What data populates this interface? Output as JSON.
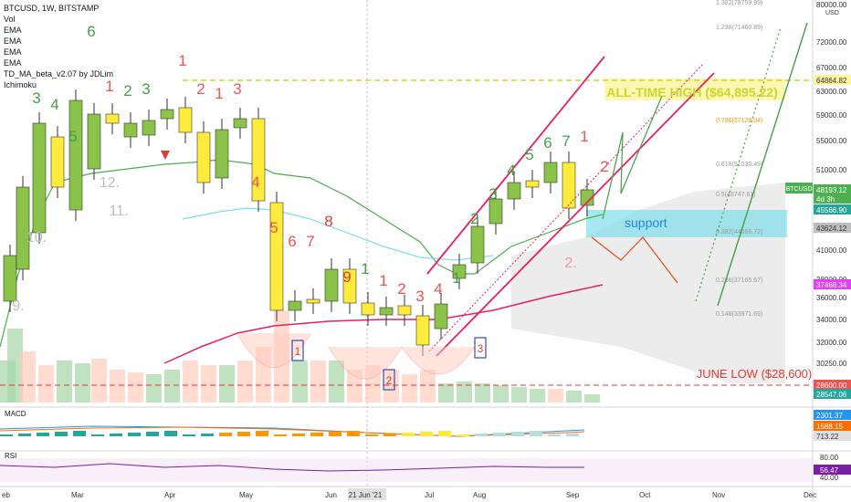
{
  "legend": {
    "symbol": "BTCUSD, 1W, BITSTAMP",
    "items": [
      "Vol",
      "EMA",
      "EMA",
      "EMA",
      "EMA",
      "TD_MA_beta_v2.07 by JDLim",
      "Ichimoku"
    ]
  },
  "price_axis": {
    "unit": "USD",
    "ticks": [
      "80000.00",
      "72000.00",
      "67000.00",
      "63000.00",
      "59000.00",
      "55000.00",
      "51000.00",
      "41000.00",
      "38000.00",
      "36000.00",
      "34000.00",
      "32000.00",
      "30250.00"
    ],
    "tags": [
      {
        "text": "64864.82",
        "color": "#fff59d",
        "textColor": "#333333"
      },
      {
        "text": "48193.12",
        "color": "#4caf50",
        "textColor": "#ffffff"
      },
      {
        "text": "4d 3h",
        "color": "#4caf50",
        "textColor": "#ffffff"
      },
      {
        "text": "45566.90",
        "color": "#26a69a",
        "textColor": "#ffffff"
      },
      {
        "text": "43624.12",
        "color": "#bdbdbd",
        "textColor": "#333333"
      },
      {
        "text": "37468.34",
        "color": "#e040fb",
        "textColor": "#ffffff"
      },
      {
        "text": "28600.00",
        "color": "#ef5350",
        "textColor": "#ffffff"
      },
      {
        "text": "28547.06",
        "color": "#26a69a",
        "textColor": "#ffffff"
      }
    ]
  },
  "fib_levels": [
    "1.382(78759.99)",
    "1.236(71460.89)",
    "0.786(57128.04)",
    "0.618(51030.49)",
    "0.5(48747.61)",
    "0.382(44666.72)",
    "0.236(37165.67)",
    "0.148(33971.69)"
  ],
  "annotations": {
    "ath": "ALL-TIME HIGH ($64,895.22)",
    "support": "support",
    "june_low": "JUNE LOW ($28,600)",
    "btc_tag": "BTCUSD"
  },
  "td_counts_top": [
    "6",
    "3",
    "4",
    "5",
    "1",
    "1",
    "2",
    "3",
    "1",
    "2",
    "3",
    "4",
    "5",
    "6",
    "7",
    "8",
    "9",
    "1",
    "1",
    "2",
    "3",
    "4",
    "1",
    "2",
    "3",
    "4",
    "5",
    "6",
    "7",
    "1",
    "2"
  ],
  "td_counts_bottom": [
    "12.",
    "11.",
    "10.",
    "9.",
    "2."
  ],
  "boxes": [
    "1",
    "2",
    "3"
  ],
  "macd": {
    "label": "MACD",
    "tags": [
      {
        "text": "2301.37",
        "color": "#2196f3"
      },
      {
        "text": "1588.15",
        "color": "#ff6d00"
      },
      {
        "text": "713.22",
        "color": "#e0e0e0"
      }
    ]
  },
  "rsi": {
    "label": "RSI",
    "ticks": [
      "80.00",
      "40.00"
    ],
    "tag": {
      "text": "56.47",
      "color": "#7b1fa2"
    }
  },
  "time_axis": {
    "labels": [
      "eb",
      "Mar",
      "Apr",
      "May",
      "Jun",
      "21 Jun '21",
      "Jul",
      "Aug",
      "Sep",
      "Oct",
      "Nov",
      "Dec"
    ]
  },
  "colors": {
    "bull": "#8bc34a",
    "bear": "#ffeb3b",
    "ema_green": "#4caf50",
    "ema_magenta": "#e91e63",
    "ath_line": "#c6d82f",
    "support": "#80deea",
    "june_low": "#e53935"
  }
}
